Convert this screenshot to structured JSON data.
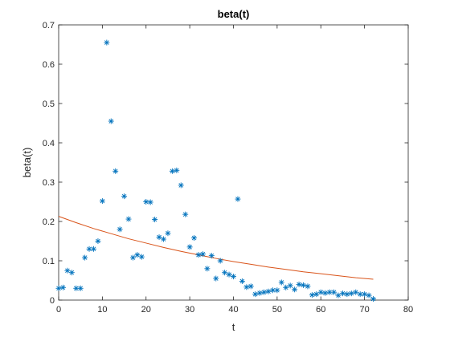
{
  "chart_data": {
    "type": "scatter",
    "title": "beta(t)",
    "xlabel": "t",
    "ylabel": "beta(t)",
    "xlim": [
      0,
      80
    ],
    "ylim": [
      0,
      0.7
    ],
    "xticks": [
      0,
      10,
      20,
      30,
      40,
      50,
      60,
      70,
      80
    ],
    "yticks": [
      0,
      0.1,
      0.2,
      0.3,
      0.4,
      0.5,
      0.6,
      0.7
    ],
    "grid": false,
    "legend": null,
    "series": [
      {
        "type": "scatter",
        "marker": "asterisk",
        "color": "#0072BD",
        "points": [
          [
            0,
            0.03
          ],
          [
            1,
            0.032
          ],
          [
            2,
            0.075
          ],
          [
            3,
            0.07
          ],
          [
            4,
            0.03
          ],
          [
            5,
            0.03
          ],
          [
            6,
            0.108
          ],
          [
            7,
            0.13
          ],
          [
            8,
            0.13
          ],
          [
            9,
            0.15
          ],
          [
            10,
            0.252
          ],
          [
            11,
            0.655
          ],
          [
            12,
            0.455
          ],
          [
            13,
            0.328
          ],
          [
            14,
            0.18
          ],
          [
            15,
            0.264
          ],
          [
            16,
            0.206
          ],
          [
            17,
            0.108
          ],
          [
            18,
            0.115
          ],
          [
            19,
            0.11
          ],
          [
            20,
            0.25
          ],
          [
            21,
            0.249
          ],
          [
            22,
            0.205
          ],
          [
            23,
            0.16
          ],
          [
            24,
            0.155
          ],
          [
            25,
            0.17
          ],
          [
            26,
            0.328
          ],
          [
            27,
            0.33
          ],
          [
            28,
            0.292
          ],
          [
            29,
            0.218
          ],
          [
            30,
            0.135
          ],
          [
            31,
            0.158
          ],
          [
            32,
            0.115
          ],
          [
            33,
            0.117
          ],
          [
            34,
            0.08
          ],
          [
            35,
            0.113
          ],
          [
            36,
            0.055
          ],
          [
            37,
            0.1
          ],
          [
            38,
            0.07
          ],
          [
            39,
            0.065
          ],
          [
            40,
            0.06
          ],
          [
            41,
            0.257
          ],
          [
            42,
            0.048
          ],
          [
            43,
            0.033
          ],
          [
            44,
            0.035
          ],
          [
            45,
            0.015
          ],
          [
            46,
            0.018
          ],
          [
            47,
            0.02
          ],
          [
            48,
            0.022
          ],
          [
            49,
            0.025
          ],
          [
            50,
            0.025
          ],
          [
            51,
            0.045
          ],
          [
            52,
            0.032
          ],
          [
            53,
            0.037
          ],
          [
            54,
            0.027
          ],
          [
            55,
            0.04
          ],
          [
            56,
            0.038
          ],
          [
            57,
            0.035
          ],
          [
            58,
            0.013
          ],
          [
            59,
            0.015
          ],
          [
            60,
            0.02
          ],
          [
            61,
            0.018
          ],
          [
            62,
            0.02
          ],
          [
            63,
            0.02
          ],
          [
            64,
            0.012
          ],
          [
            65,
            0.017
          ],
          [
            66,
            0.015
          ],
          [
            67,
            0.017
          ],
          [
            68,
            0.02
          ],
          [
            69,
            0.015
          ],
          [
            70,
            0.015
          ],
          [
            71,
            0.012
          ],
          [
            72,
            0.003
          ]
        ]
      },
      {
        "type": "line",
        "color": "#D95319",
        "x": [
          0,
          4,
          8,
          12,
          16,
          20,
          24,
          28,
          32,
          36,
          40,
          44,
          48,
          52,
          56,
          60,
          64,
          68,
          72
        ],
        "y": [
          0.213,
          0.197,
          0.182,
          0.169,
          0.156,
          0.145,
          0.134,
          0.124,
          0.115,
          0.106,
          0.098,
          0.091,
          0.084,
          0.078,
          0.072,
          0.067,
          0.062,
          0.057,
          0.053
        ]
      }
    ]
  }
}
